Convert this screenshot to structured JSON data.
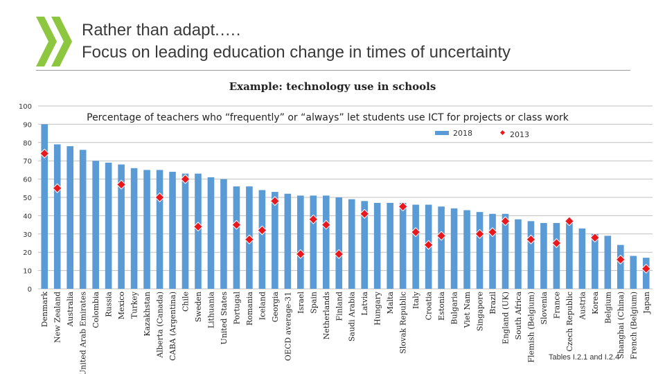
{
  "header": {
    "title_line1": "Rather than adapt.….",
    "title_line2": "Focus on leading education change in times of uncertainty",
    "example_label": "Example:  technology use in schools",
    "footnote": "Tables I.2.1 and I.2.4"
  },
  "colors": {
    "bar": "#5b9bd5",
    "marker": "#e8191e",
    "grid": "#bfbfbf",
    "logo": "#8dc63f"
  },
  "chart_data": {
    "type": "bar",
    "title": "Percentage of teachers who “frequently” or “always” let students use ICT for projects or class work",
    "ylim": [
      0,
      100
    ],
    "yticks": [
      0,
      10,
      20,
      30,
      40,
      50,
      60,
      70,
      80,
      90,
      100
    ],
    "grid": true,
    "legend_position": "top-right",
    "categories": [
      "Denmark",
      "New Zealand",
      "Australia",
      "United Arab Emirates",
      "Colombia",
      "Russia",
      "Mexico",
      "Turkey",
      "Kazakhstan",
      "Alberta (Canada)",
      "CABA (Argentina)",
      "Chile",
      "Sweden",
      "Lithuania",
      "United States",
      "Portugal",
      "Romania",
      "Iceland",
      "Georgia",
      "OECD average-31",
      "Israel",
      "Spain",
      "Netherlands",
      "Finland",
      "Saudi Arabia",
      "Latvia",
      "Hungary",
      "Malta",
      "Slovak Republic",
      "Italy",
      "Croatia",
      "Estonia",
      "Bulgaria",
      "Viet Nam",
      "Singapore",
      "Brazil",
      "England (UK)",
      "South Africa",
      "Flemish (Belgium)",
      "Slovenia",
      "France",
      "Czech Republic",
      "Austria",
      "Korea",
      "Belgium",
      "Shanghai (China)",
      "French (Belgium)",
      "Japan"
    ],
    "series": [
      {
        "name": "2018",
        "kind": "bar",
        "values": [
          90,
          79,
          78,
          76,
          70,
          69,
          68,
          66,
          65,
          65,
          64,
          63,
          63,
          61,
          60,
          56,
          56,
          54,
          53,
          52,
          51,
          51,
          51,
          50,
          49,
          48,
          47,
          47,
          47,
          46,
          46,
          45,
          44,
          43,
          42,
          41,
          41,
          38,
          37,
          36,
          36,
          36,
          33,
          30,
          29,
          24,
          18,
          17
        ]
      },
      {
        "name": "2013",
        "kind": "marker",
        "values": [
          74,
          55,
          null,
          null,
          null,
          null,
          57,
          null,
          null,
          50,
          null,
          60,
          34,
          null,
          null,
          35,
          27,
          32,
          48,
          null,
          19,
          38,
          35,
          19,
          null,
          41,
          null,
          null,
          45,
          31,
          24,
          29,
          null,
          null,
          30,
          31,
          37,
          null,
          27,
          null,
          25,
          37,
          null,
          28,
          null,
          16,
          null,
          11
        ]
      }
    ]
  }
}
